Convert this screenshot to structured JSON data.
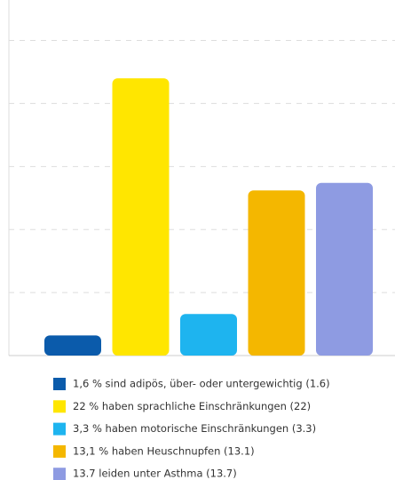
{
  "chart_data": {
    "type": "bar",
    "categories": [
      "1,6 % sind adipös, über- oder untergewichtig (1.6)",
      "22 % haben sprachliche Einschränkungen (22)",
      "3,3 % haben motorische Einschränkungen (3.3)",
      "13,1 % haben Heuschnupfen (13.1)",
      "13.7 leiden unter Asthma (13.7)"
    ],
    "values": [
      1.6,
      22,
      3.3,
      13.1,
      13.7
    ],
    "colors": [
      "#0b5bab",
      "#ffe600",
      "#1eb4ef",
      "#f4b700",
      "#8e9be2"
    ],
    "ylim": [
      0,
      28
    ],
    "yticks": [
      0,
      5,
      10,
      15,
      20,
      25
    ],
    "grid": true
  }
}
